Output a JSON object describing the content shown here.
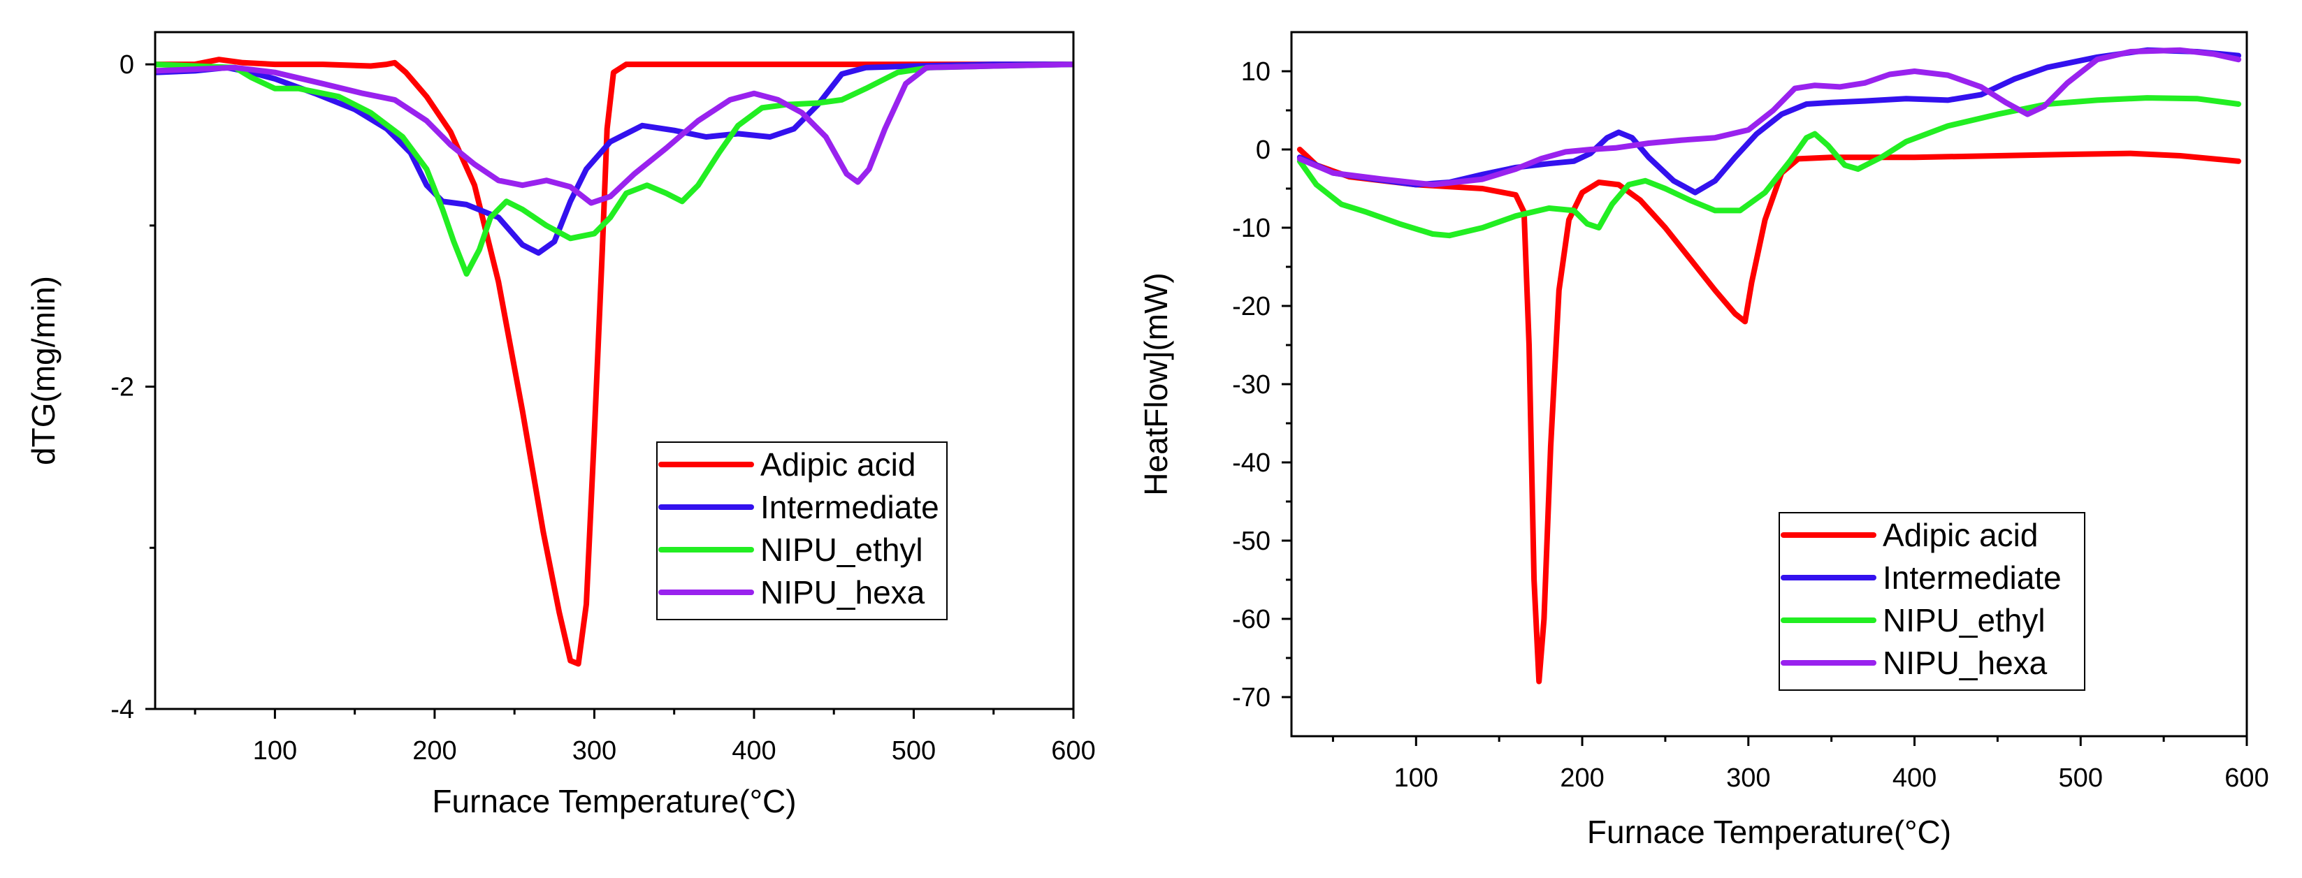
{
  "chart_data": [
    {
      "type": "line",
      "title": "",
      "xlabel": "Furnace Temperature(°C)",
      "ylabel": "dTG(mg/min)",
      "xlim": [
        25,
        600
      ],
      "ylim": [
        -4,
        0.2
      ],
      "xticks": [
        100,
        200,
        300,
        400,
        500,
        600
      ],
      "yticks": [
        0,
        -2,
        -4
      ],
      "legend_position": "bottom-right",
      "series": [
        {
          "name": "Adipic acid",
          "color": "#ff0000",
          "points": [
            [
              25,
              0.0
            ],
            [
              50,
              0.0
            ],
            [
              65,
              0.03
            ],
            [
              80,
              0.01
            ],
            [
              100,
              0.0
            ],
            [
              130,
              0.0
            ],
            [
              160,
              -0.01
            ],
            [
              170,
              0.0
            ],
            [
              175,
              0.01
            ],
            [
              182,
              -0.05
            ],
            [
              195,
              -0.2
            ],
            [
              210,
              -0.42
            ],
            [
              225,
              -0.75
            ],
            [
              240,
              -1.35
            ],
            [
              255,
              -2.15
            ],
            [
              268,
              -2.9
            ],
            [
              278,
              -3.4
            ],
            [
              285,
              -3.7
            ],
            [
              290,
              -3.72
            ],
            [
              295,
              -3.35
            ],
            [
              300,
              -2.3
            ],
            [
              305,
              -1.15
            ],
            [
              308,
              -0.4
            ],
            [
              312,
              -0.05
            ],
            [
              320,
              0.0
            ],
            [
              400,
              0.0
            ],
            [
              500,
              0.0
            ],
            [
              600,
              0.0
            ]
          ]
        },
        {
          "name": "Intermediate",
          "color": "#3311ee",
          "points": [
            [
              25,
              -0.05
            ],
            [
              50,
              -0.04
            ],
            [
              70,
              -0.02
            ],
            [
              85,
              -0.05
            ],
            [
              100,
              -0.09
            ],
            [
              125,
              -0.18
            ],
            [
              150,
              -0.28
            ],
            [
              170,
              -0.4
            ],
            [
              185,
              -0.55
            ],
            [
              195,
              -0.75
            ],
            [
              205,
              -0.85
            ],
            [
              220,
              -0.87
            ],
            [
              240,
              -0.95
            ],
            [
              255,
              -1.12
            ],
            [
              265,
              -1.17
            ],
            [
              275,
              -1.1
            ],
            [
              285,
              -0.85
            ],
            [
              295,
              -0.65
            ],
            [
              310,
              -0.48
            ],
            [
              330,
              -0.38
            ],
            [
              350,
              -0.41
            ],
            [
              370,
              -0.45
            ],
            [
              390,
              -0.43
            ],
            [
              410,
              -0.45
            ],
            [
              425,
              -0.4
            ],
            [
              440,
              -0.25
            ],
            [
              455,
              -0.06
            ],
            [
              470,
              -0.02
            ],
            [
              500,
              -0.01
            ],
            [
              550,
              0.0
            ],
            [
              600,
              0.0
            ]
          ]
        },
        {
          "name": "NIPU_ethyl",
          "color": "#22ee22",
          "points": [
            [
              25,
              0.0
            ],
            [
              50,
              -0.01
            ],
            [
              75,
              -0.02
            ],
            [
              85,
              -0.08
            ],
            [
              100,
              -0.15
            ],
            [
              115,
              -0.15
            ],
            [
              140,
              -0.2
            ],
            [
              160,
              -0.3
            ],
            [
              180,
              -0.45
            ],
            [
              195,
              -0.65
            ],
            [
              205,
              -0.9
            ],
            [
              212,
              -1.1
            ],
            [
              220,
              -1.3
            ],
            [
              228,
              -1.15
            ],
            [
              235,
              -0.95
            ],
            [
              245,
              -0.85
            ],
            [
              255,
              -0.9
            ],
            [
              270,
              -1.0
            ],
            [
              285,
              -1.08
            ],
            [
              300,
              -1.05
            ],
            [
              310,
              -0.95
            ],
            [
              320,
              -0.8
            ],
            [
              333,
              -0.75
            ],
            [
              345,
              -0.8
            ],
            [
              355,
              -0.85
            ],
            [
              365,
              -0.75
            ],
            [
              378,
              -0.55
            ],
            [
              390,
              -0.38
            ],
            [
              405,
              -0.27
            ],
            [
              420,
              -0.25
            ],
            [
              440,
              -0.24
            ],
            [
              455,
              -0.22
            ],
            [
              470,
              -0.15
            ],
            [
              490,
              -0.05
            ],
            [
              510,
              -0.02
            ],
            [
              550,
              -0.01
            ],
            [
              600,
              0.0
            ]
          ]
        },
        {
          "name": "NIPU_hexa",
          "color": "#9922ee",
          "points": [
            [
              25,
              -0.04
            ],
            [
              50,
              -0.03
            ],
            [
              75,
              -0.02
            ],
            [
              100,
              -0.05
            ],
            [
              130,
              -0.12
            ],
            [
              155,
              -0.18
            ],
            [
              175,
              -0.22
            ],
            [
              195,
              -0.35
            ],
            [
              210,
              -0.5
            ],
            [
              225,
              -0.62
            ],
            [
              240,
              -0.72
            ],
            [
              255,
              -0.75
            ],
            [
              270,
              -0.72
            ],
            [
              285,
              -0.76
            ],
            [
              298,
              -0.86
            ],
            [
              310,
              -0.82
            ],
            [
              325,
              -0.68
            ],
            [
              345,
              -0.52
            ],
            [
              365,
              -0.35
            ],
            [
              385,
              -0.22
            ],
            [
              400,
              -0.18
            ],
            [
              415,
              -0.22
            ],
            [
              430,
              -0.3
            ],
            [
              445,
              -0.45
            ],
            [
              458,
              -0.68
            ],
            [
              465,
              -0.73
            ],
            [
              472,
              -0.65
            ],
            [
              482,
              -0.4
            ],
            [
              495,
              -0.12
            ],
            [
              508,
              -0.02
            ],
            [
              550,
              -0.01
            ],
            [
              600,
              0.0
            ]
          ]
        }
      ]
    },
    {
      "type": "line",
      "title": "",
      "xlabel": "Furnace Temperature(°C)",
      "ylabel": "HeatFlow](mW)",
      "xlim": [
        25,
        600
      ],
      "ylim": [
        -75,
        15
      ],
      "xticks": [
        100,
        200,
        300,
        400,
        500,
        600
      ],
      "yticks": [
        10,
        0,
        -10,
        -20,
        -30,
        -40,
        -50,
        -60,
        -70
      ],
      "legend_position": "bottom-right",
      "series": [
        {
          "name": "Adipic acid",
          "color": "#ff0000",
          "points": [
            [
              30,
              0.0
            ],
            [
              40,
              -2.0
            ],
            [
              60,
              -3.5
            ],
            [
              100,
              -4.5
            ],
            [
              140,
              -5.0
            ],
            [
              160,
              -5.8
            ],
            [
              165,
              -8.0
            ],
            [
              168,
              -25.0
            ],
            [
              171,
              -55.0
            ],
            [
              174,
              -68.0
            ],
            [
              177,
              -60.0
            ],
            [
              181,
              -38.0
            ],
            [
              186,
              -18.0
            ],
            [
              192,
              -9.0
            ],
            [
              200,
              -5.5
            ],
            [
              210,
              -4.2
            ],
            [
              222,
              -4.5
            ],
            [
              235,
              -6.5
            ],
            [
              250,
              -10.0
            ],
            [
              265,
              -14.0
            ],
            [
              280,
              -18.0
            ],
            [
              292,
              -21.0
            ],
            [
              298,
              -22.0
            ],
            [
              302,
              -17.0
            ],
            [
              310,
              -9.0
            ],
            [
              320,
              -3.0
            ],
            [
              330,
              -1.2
            ],
            [
              350,
              -1.0
            ],
            [
              400,
              -1.0
            ],
            [
              450,
              -0.8
            ],
            [
              500,
              -0.6
            ],
            [
              530,
              -0.5
            ],
            [
              560,
              -0.8
            ],
            [
              595,
              -1.5
            ]
          ]
        },
        {
          "name": "Intermediate",
          "color": "#3311ee",
          "points": [
            [
              30,
              -1.0
            ],
            [
              50,
              -3.0
            ],
            [
              75,
              -3.8
            ],
            [
              100,
              -4.5
            ],
            [
              120,
              -4.2
            ],
            [
              140,
              -3.2
            ],
            [
              160,
              -2.3
            ],
            [
              180,
              -1.8
            ],
            [
              195,
              -1.5
            ],
            [
              205,
              -0.5
            ],
            [
              215,
              1.5
            ],
            [
              222,
              2.2
            ],
            [
              230,
              1.5
            ],
            [
              240,
              -1.0
            ],
            [
              255,
              -4.0
            ],
            [
              268,
              -5.5
            ],
            [
              280,
              -4.0
            ],
            [
              292,
              -1.0
            ],
            [
              305,
              2.0
            ],
            [
              320,
              4.5
            ],
            [
              335,
              5.8
            ],
            [
              350,
              6.0
            ],
            [
              370,
              6.2
            ],
            [
              395,
              6.5
            ],
            [
              420,
              6.3
            ],
            [
              440,
              7.0
            ],
            [
              460,
              9.0
            ],
            [
              480,
              10.5
            ],
            [
              510,
              11.8
            ],
            [
              540,
              12.7
            ],
            [
              570,
              12.5
            ],
            [
              595,
              12.0
            ]
          ]
        },
        {
          "name": "NIPU_ethyl",
          "color": "#22ee22",
          "points": [
            [
              30,
              -1.5
            ],
            [
              40,
              -4.5
            ],
            [
              55,
              -7.0
            ],
            [
              70,
              -8.0
            ],
            [
              90,
              -9.5
            ],
            [
              110,
              -10.8
            ],
            [
              120,
              -11.0
            ],
            [
              140,
              -10.0
            ],
            [
              160,
              -8.5
            ],
            [
              180,
              -7.5
            ],
            [
              195,
              -7.8
            ],
            [
              203,
              -9.5
            ],
            [
              210,
              -10.0
            ],
            [
              218,
              -7.0
            ],
            [
              228,
              -4.5
            ],
            [
              238,
              -4.0
            ],
            [
              250,
              -5.0
            ],
            [
              265,
              -6.5
            ],
            [
              280,
              -7.8
            ],
            [
              295,
              -7.8
            ],
            [
              310,
              -5.5
            ],
            [
              325,
              -1.5
            ],
            [
              335,
              1.5
            ],
            [
              340,
              2.0
            ],
            [
              348,
              0.5
            ],
            [
              358,
              -2.0
            ],
            [
              366,
              -2.5
            ],
            [
              380,
              -1.0
            ],
            [
              395,
              1.0
            ],
            [
              420,
              3.0
            ],
            [
              450,
              4.5
            ],
            [
              480,
              5.8
            ],
            [
              510,
              6.3
            ],
            [
              540,
              6.6
            ],
            [
              570,
              6.5
            ],
            [
              595,
              5.8
            ]
          ]
        },
        {
          "name": "NIPU_hexa",
          "color": "#9922ee",
          "points": [
            [
              30,
              -1.2
            ],
            [
              50,
              -3.0
            ],
            [
              80,
              -3.8
            ],
            [
              110,
              -4.5
            ],
            [
              140,
              -3.8
            ],
            [
              160,
              -2.5
            ],
            [
              175,
              -1.2
            ],
            [
              190,
              -0.3
            ],
            [
              205,
              0.0
            ],
            [
              220,
              0.2
            ],
            [
              240,
              0.8
            ],
            [
              260,
              1.2
            ],
            [
              280,
              1.5
            ],
            [
              300,
              2.5
            ],
            [
              315,
              5.0
            ],
            [
              328,
              7.8
            ],
            [
              340,
              8.2
            ],
            [
              355,
              8.0
            ],
            [
              370,
              8.5
            ],
            [
              385,
              9.6
            ],
            [
              400,
              10.0
            ],
            [
              420,
              9.5
            ],
            [
              440,
              8.0
            ],
            [
              455,
              6.0
            ],
            [
              468,
              4.5
            ],
            [
              478,
              5.5
            ],
            [
              492,
              8.5
            ],
            [
              510,
              11.5
            ],
            [
              530,
              12.5
            ],
            [
              560,
              12.7
            ],
            [
              580,
              12.2
            ],
            [
              595,
              11.5
            ]
          ]
        }
      ]
    }
  ]
}
